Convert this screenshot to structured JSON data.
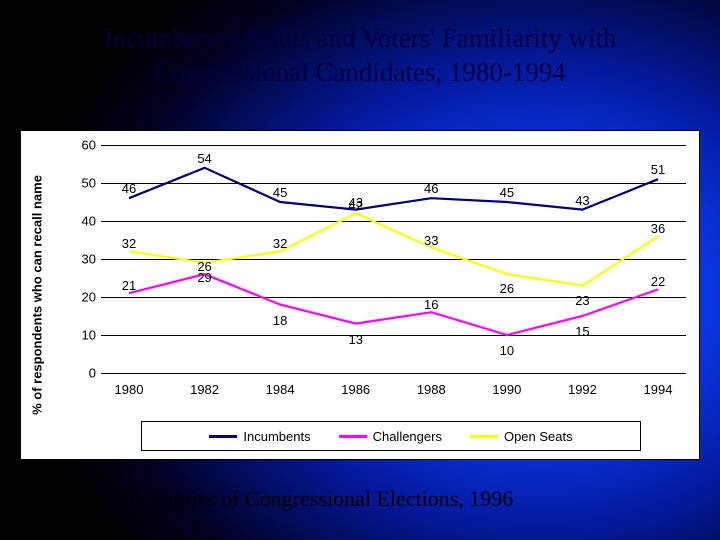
{
  "title_line1": "Incumbency Status and Voters' Familiarity with",
  "title_line2": "Congressional Candidates, 1980-1994",
  "citation": "Jacobsen, The Politics of Congressional Elections, 1996",
  "chart": {
    "type": "line",
    "ylabel": "% of respondents who can recall name",
    "ylim": [
      0,
      60
    ],
    "ytick_step": 10,
    "yticks": [
      0,
      10,
      20,
      30,
      40,
      50,
      60
    ],
    "categories": [
      "1980",
      "1982",
      "1984",
      "1986",
      "1988",
      "1990",
      "1992",
      "1994"
    ],
    "series": [
      {
        "name": "Incumbents",
        "color": "#000080",
        "values": [
          46,
          54,
          45,
          43,
          46,
          45,
          43,
          51
        ],
        "label_offset_y": [
          -17,
          -17,
          -17,
          -15,
          -17,
          -17,
          -17,
          -17
        ]
      },
      {
        "name": "Challengers",
        "color": "#ff00ff",
        "values": [
          21,
          26,
          18,
          13,
          16,
          10,
          15,
          22
        ],
        "label_offset_y": [
          -15,
          -15,
          8,
          8,
          -15,
          8,
          8,
          -15
        ]
      },
      {
        "name": "Open Seats",
        "color": "#ffff00",
        "values": [
          32,
          29,
          32,
          42,
          33,
          26,
          23,
          36
        ],
        "label_offset_y": [
          -15,
          7,
          -15,
          -15,
          -15,
          7,
          7,
          -15
        ]
      }
    ],
    "line_width": 2.2,
    "grid_color": "#000000",
    "background_color": "#ffffff",
    "label_fontsize": 13,
    "tick_fontsize": 13,
    "title_fontsize": 27
  }
}
